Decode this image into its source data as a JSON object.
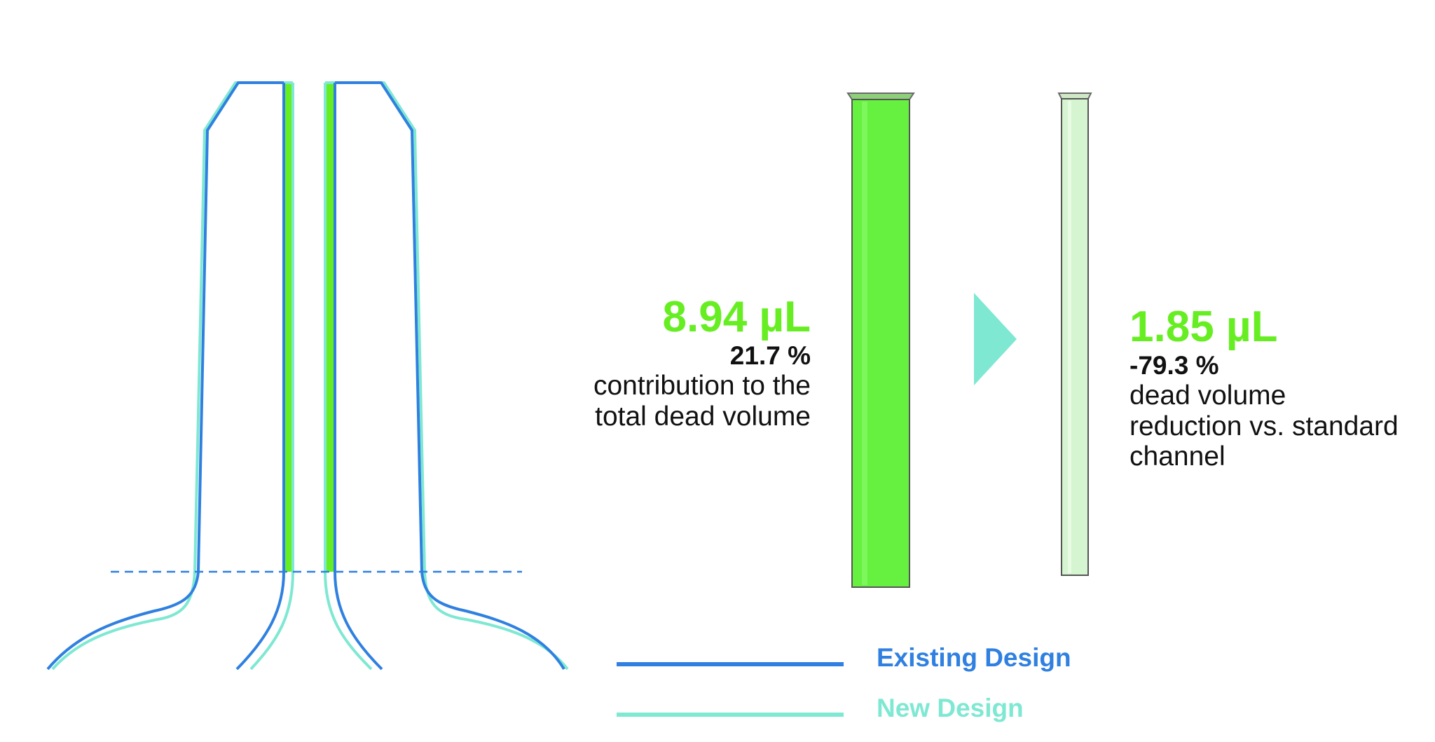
{
  "colors": {
    "existing": "#2f80e0",
    "new": "#7ee8d2",
    "volume_green": "#66f040",
    "volume_green_light": "#d4f5cf",
    "text_dark": "#111111"
  },
  "before": {
    "volume": "8.94 µL",
    "percent": "21.7 %",
    "description_lines": [
      "contribution to the",
      "total dead volume"
    ]
  },
  "after": {
    "volume": "1.85 µL",
    "percent": "-79.3 %",
    "description_lines": [
      "dead volume",
      "reduction vs. standard",
      "channel"
    ]
  },
  "legend": {
    "items": [
      {
        "label": "Existing Design",
        "color": "#2f80e0"
      },
      {
        "label": "New Design",
        "color": "#7ee8d2"
      }
    ]
  }
}
